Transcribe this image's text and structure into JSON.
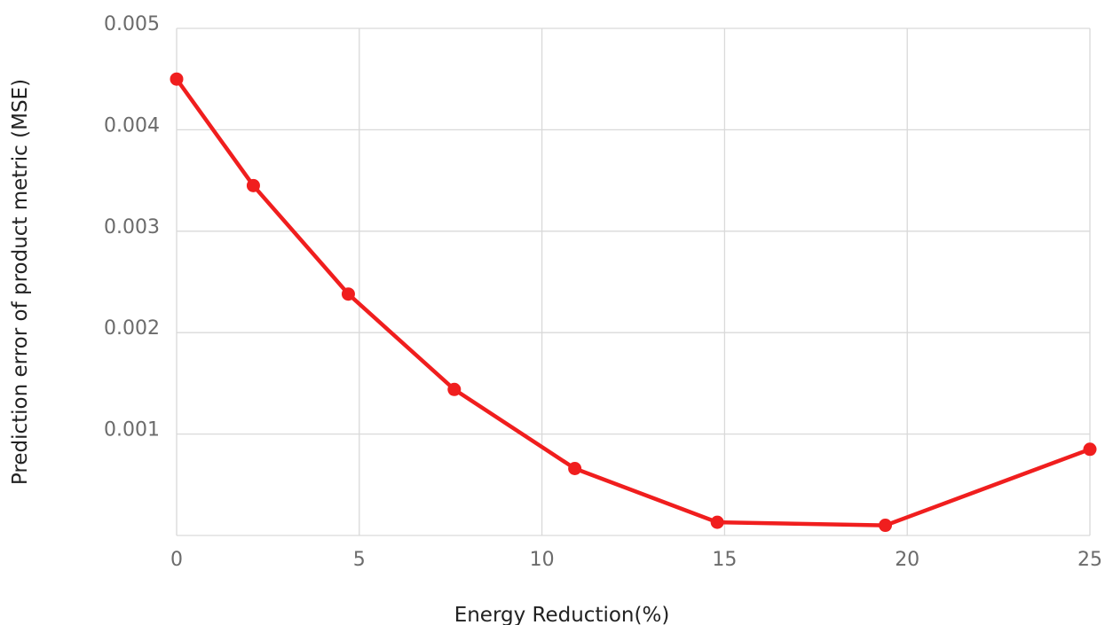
{
  "chart_data": {
    "type": "line",
    "xlabel": "Energy Reduction(%)",
    "ylabel": "Prediction error of product metric (MSE)",
    "xlim": [
      0,
      25
    ],
    "ylim": [
      0,
      0.005
    ],
    "x_ticks": [
      0,
      5,
      10,
      15,
      20,
      25
    ],
    "x_tick_labels": [
      "0",
      "5",
      "10",
      "15",
      "20",
      "25"
    ],
    "y_ticks": [
      0.001,
      0.002,
      0.003,
      0.004,
      0.005
    ],
    "y_tick_labels": [
      "0.001",
      "0.002",
      "0.003",
      "0.004",
      "0.005"
    ],
    "grid": true,
    "legend": "none",
    "series": [
      {
        "color": "#f01e1e",
        "marker": "circle",
        "points": [
          {
            "x": 0,
            "y": 0.0045
          },
          {
            "x": 2.1,
            "y": 0.00345
          },
          {
            "x": 4.7,
            "y": 0.00238
          },
          {
            "x": 7.6,
            "y": 0.00144
          },
          {
            "x": 10.9,
            "y": 0.00066
          },
          {
            "x": 14.8,
            "y": 0.00013
          },
          {
            "x": 19.4,
            "y": 0.0001
          },
          {
            "x": 25,
            "y": 0.00085
          }
        ]
      }
    ]
  }
}
